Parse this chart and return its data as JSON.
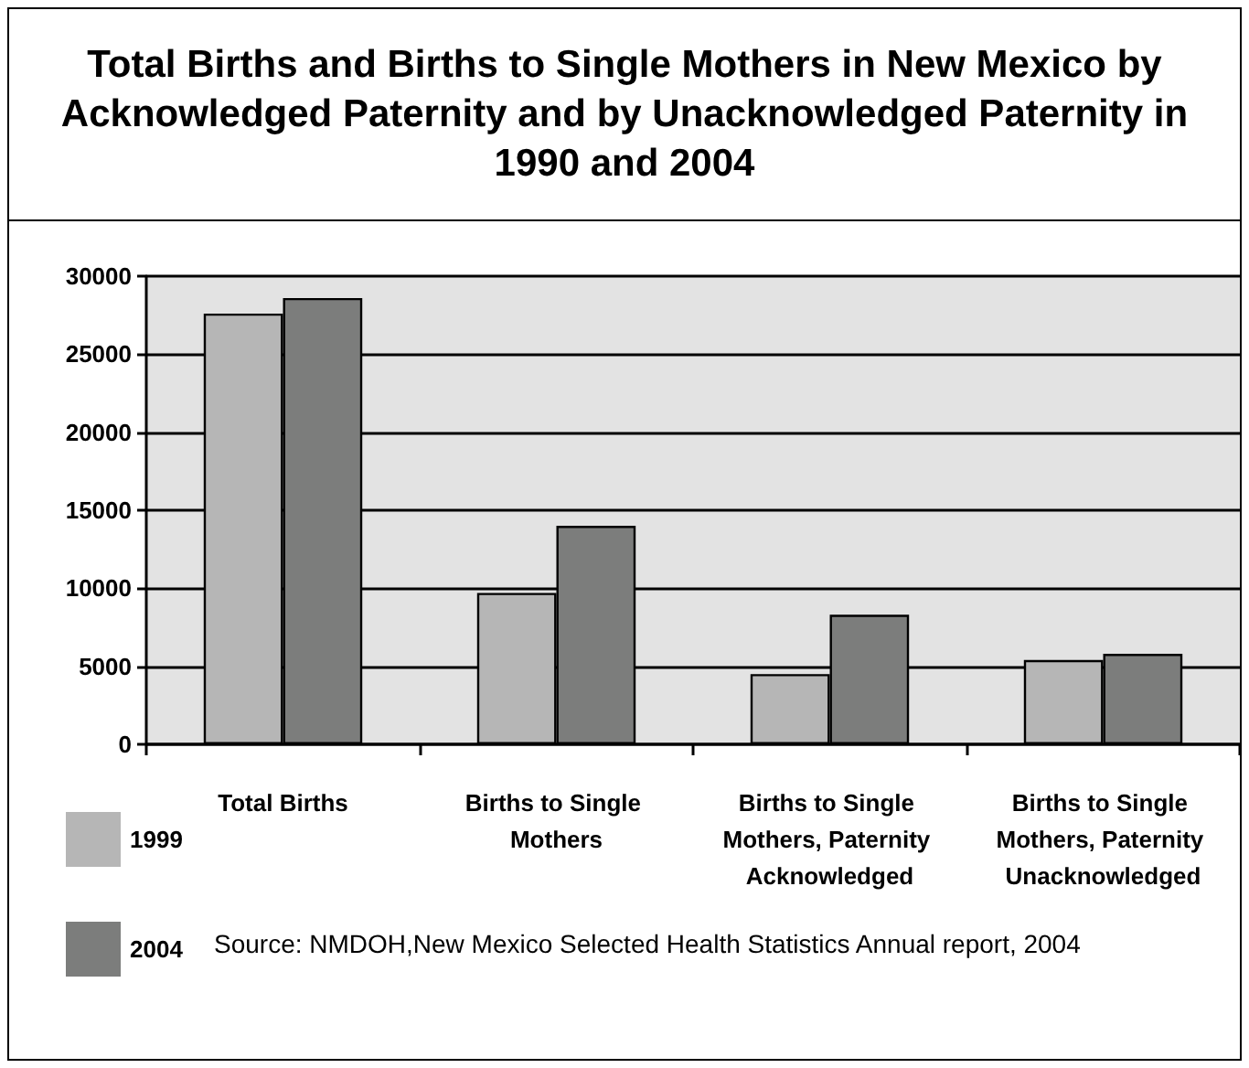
{
  "chart_data": {
    "type": "bar",
    "title": "Total Births and Births to Single Mothers in New Mexico by Acknowledged Paternity and by Unacknowledged Paternity in 1990 and 2004",
    "categories": [
      "Total Births",
      "Births to Single Mothers",
      "Births to Single Mothers, Paternity Acknowledged",
      "Births to Single Mothers, Paternity Unacknowledged"
    ],
    "series": [
      {
        "name": "1999",
        "color": "#b6b6b6",
        "values": [
          27600,
          9700,
          4500,
          5400
        ]
      },
      {
        "name": "2004",
        "color": "#7c7d7c",
        "values": [
          28600,
          14000,
          8300,
          5800
        ]
      }
    ],
    "ylim": [
      0,
      30000
    ],
    "yticks": [
      0,
      5000,
      10000,
      15000,
      20000,
      25000,
      30000
    ],
    "grid": "y",
    "legend": "bottom left",
    "annotations": [
      "Source: NMDOH,New Mexico Selected Health Statistics Annual report, 2004"
    ]
  }
}
